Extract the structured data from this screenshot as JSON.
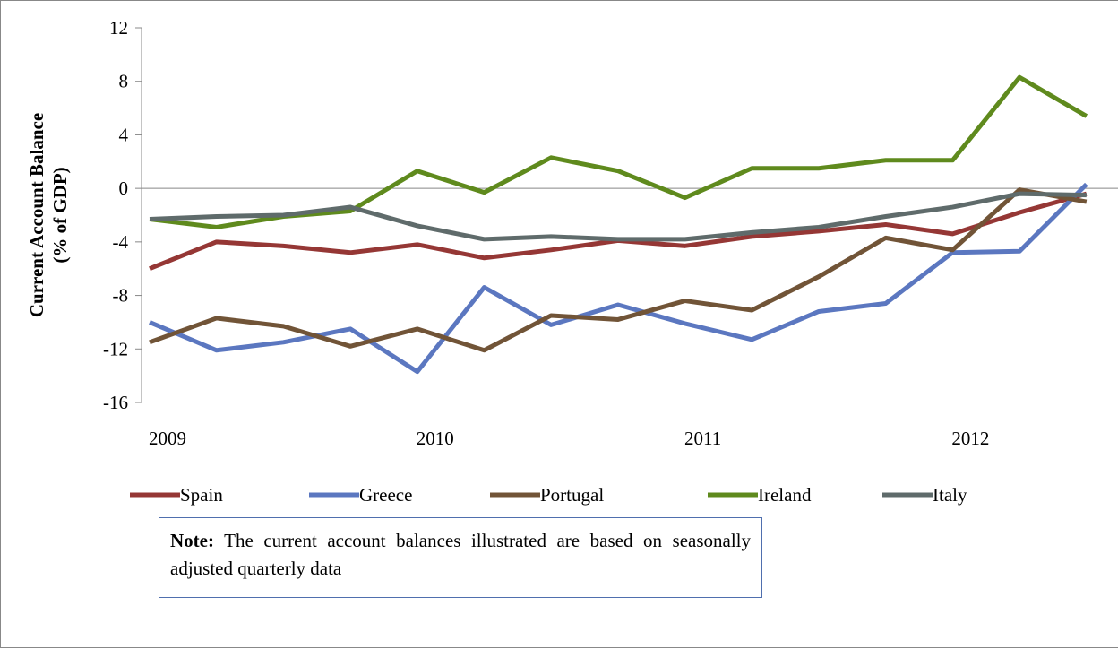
{
  "chart_data": {
    "type": "line",
    "y_label_lines": [
      "Current Account Balance",
      "(% of GDP)"
    ],
    "categories": [
      "2009",
      null,
      null,
      null,
      "2010",
      null,
      null,
      null,
      "2011",
      null,
      null,
      null,
      "2012",
      null,
      null
    ],
    "series": [
      {
        "name": "Spain",
        "color": "#953735",
        "values": [
          -6.0,
          -4.0,
          -4.3,
          -4.8,
          -4.2,
          -5.2,
          -4.6,
          -3.9,
          -4.3,
          -3.6,
          -3.2,
          -2.7,
          -3.4,
          -1.8,
          -0.4
        ]
      },
      {
        "name": "Greece",
        "color": "#5b77c0",
        "values": [
          -10.0,
          -12.1,
          -11.5,
          -10.5,
          -13.7,
          -7.4,
          -10.2,
          -8.7,
          -10.1,
          -11.3,
          -9.2,
          -8.6,
          -4.8,
          -4.7,
          0.3
        ]
      },
      {
        "name": "Portugal",
        "color": "#715437",
        "values": [
          -11.5,
          -9.7,
          -10.3,
          -11.8,
          -10.5,
          -12.1,
          -9.5,
          -9.8,
          -8.4,
          -9.1,
          -6.6,
          -3.7,
          -4.6,
          -0.1,
          -1.0
        ]
      },
      {
        "name": "Ireland",
        "color": "#5f8a1d",
        "values": [
          -2.3,
          -2.9,
          -2.1,
          -1.7,
          1.3,
          -0.3,
          2.3,
          1.3,
          -0.7,
          1.5,
          1.5,
          2.1,
          2.1,
          8.3,
          5.4
        ]
      },
      {
        "name": "Italy",
        "color": "#5f6b6b",
        "values": [
          -2.3,
          -2.1,
          -2.0,
          -1.4,
          -2.8,
          -3.8,
          -3.6,
          -3.8,
          -3.8,
          -3.3,
          -2.9,
          -2.1,
          -1.4,
          -0.4,
          -0.5
        ]
      }
    ],
    "ylim": [
      -16,
      12
    ],
    "yticks": [
      -16,
      -12,
      -8,
      -4,
      0,
      4,
      8,
      12
    ],
    "note": {
      "label": "Note:",
      "text": "The current account balances illustrated are based on seasonally adjusted quarterly data"
    }
  }
}
